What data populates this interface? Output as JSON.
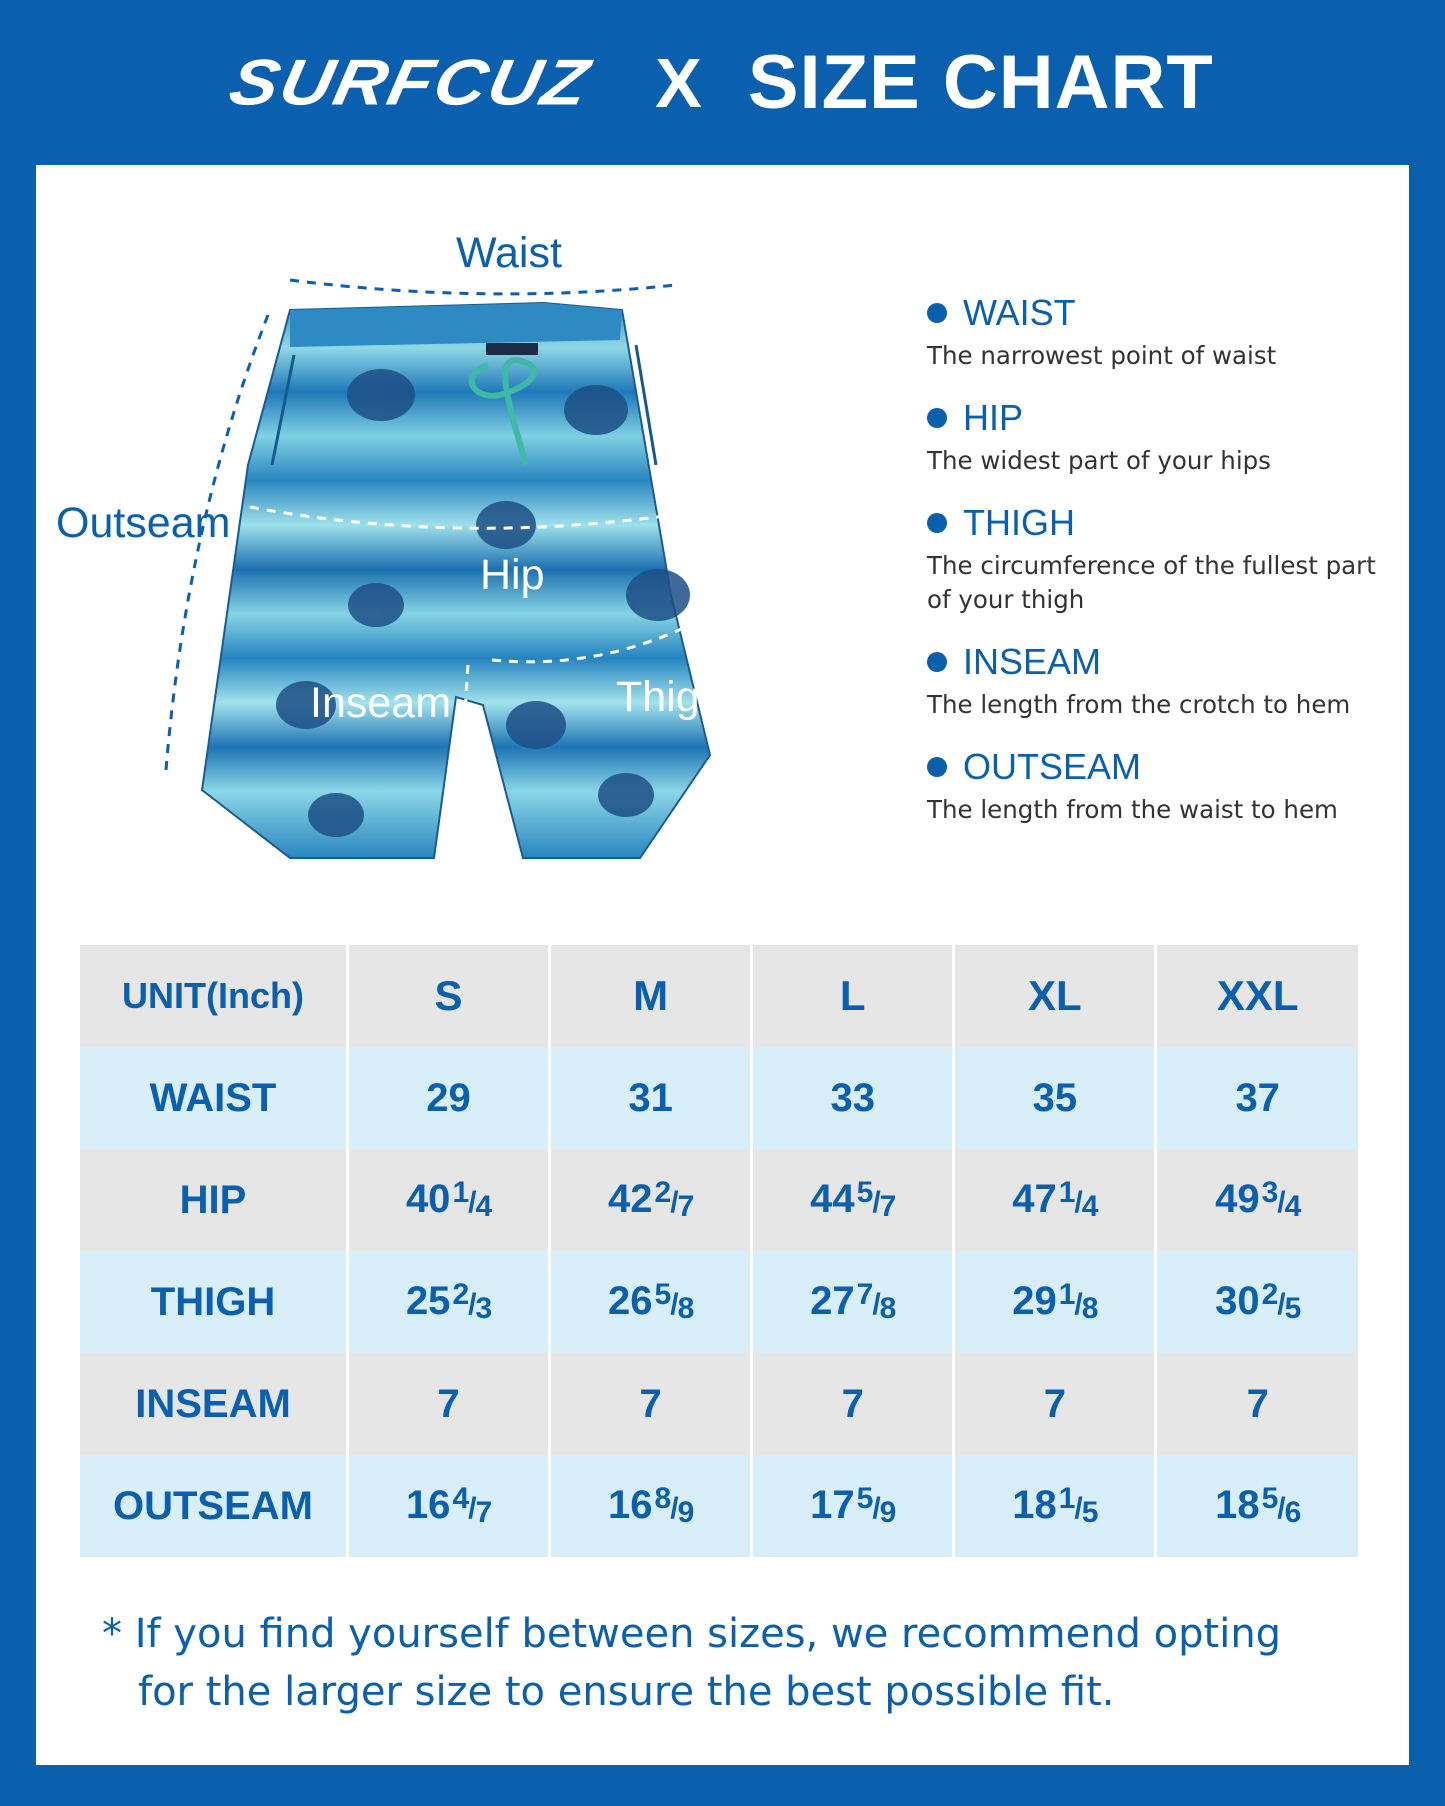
{
  "header": {
    "brand": "SURFCUZ",
    "separator": "X",
    "title": "SIZE CHART"
  },
  "colors": {
    "brand_blue": "#0a5fae",
    "row_gray": "#e6e6e6",
    "row_light_blue": "#d8eef9"
  },
  "diagram": {
    "labels": {
      "waist": "Waist",
      "outseam": "Outseam",
      "hip": "Hip",
      "inseam": "Inseam",
      "thigh": "Thigh"
    }
  },
  "legend": [
    {
      "title": "WAIST",
      "desc": "The narrowest point of waist"
    },
    {
      "title": "HIP",
      "desc": "The widest part of your hips"
    },
    {
      "title": "THIGH",
      "desc": "The circumference of the fullest part of your thigh"
    },
    {
      "title": "INSEAM",
      "desc": "The length from the crotch to hem"
    },
    {
      "title": "OUTSEAM",
      "desc": "The length from the waist to hem"
    }
  ],
  "table": {
    "unit_label": "UNIT(Inch)",
    "sizes": [
      "S",
      "M",
      "L",
      "XL",
      "XXL"
    ],
    "rows": [
      {
        "label": "WAIST",
        "values": [
          {
            "whole": "29"
          },
          {
            "whole": "31"
          },
          {
            "whole": "33"
          },
          {
            "whole": "35"
          },
          {
            "whole": "37"
          }
        ]
      },
      {
        "label": "HIP",
        "values": [
          {
            "whole": "40",
            "num": "1",
            "den": "4"
          },
          {
            "whole": "42",
            "num": "2",
            "den": "7"
          },
          {
            "whole": "44",
            "num": "5",
            "den": "7"
          },
          {
            "whole": "47",
            "num": "1",
            "den": "4"
          },
          {
            "whole": "49",
            "num": "3",
            "den": "4"
          }
        ]
      },
      {
        "label": "THIGH",
        "values": [
          {
            "whole": "25",
            "num": "2",
            "den": "3"
          },
          {
            "whole": "26",
            "num": "5",
            "den": "8"
          },
          {
            "whole": "27",
            "num": "7",
            "den": "8"
          },
          {
            "whole": "29",
            "num": "1",
            "den": "8"
          },
          {
            "whole": "30",
            "num": "2",
            "den": "5"
          }
        ]
      },
      {
        "label": "INSEAM",
        "values": [
          {
            "whole": "7"
          },
          {
            "whole": "7"
          },
          {
            "whole": "7"
          },
          {
            "whole": "7"
          },
          {
            "whole": "7"
          }
        ]
      },
      {
        "label": "OUTSEAM",
        "values": [
          {
            "whole": "16",
            "num": "4",
            "den": "7"
          },
          {
            "whole": "16",
            "num": "8",
            "den": "9"
          },
          {
            "whole": "17",
            "num": "5",
            "den": "9"
          },
          {
            "whole": "18",
            "num": "1",
            "den": "5"
          },
          {
            "whole": "18",
            "num": "5",
            "den": "6"
          }
        ]
      }
    ]
  },
  "note": {
    "line1": "* If you find yourself between sizes, we recommend opting",
    "line2": "for the larger size to ensure the best possible fit."
  }
}
